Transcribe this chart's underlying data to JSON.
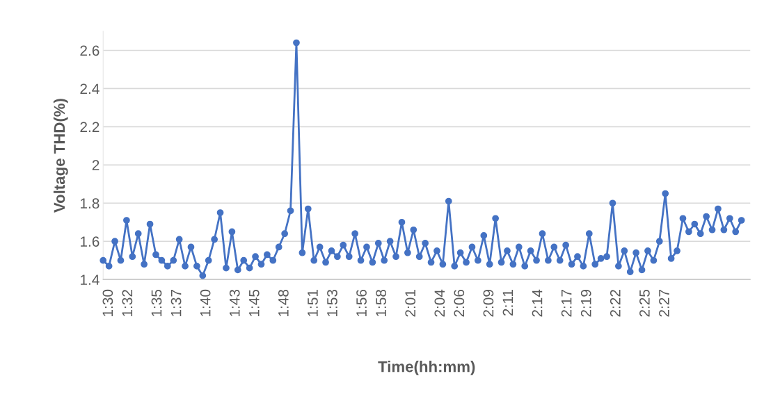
{
  "chart_data": {
    "type": "line",
    "xlabel": "Time(hh:mm)",
    "ylabel": "Voltage THD(%)",
    "x": [
      1.49,
      1.5,
      1.51,
      1.52,
      1.53,
      1.54,
      1.55,
      1.56,
      1.57,
      1.58,
      1.59,
      1.6,
      1.61,
      1.62,
      1.63,
      1.64,
      1.65,
      1.66,
      1.67,
      1.68,
      1.69,
      1.7,
      1.71,
      1.72,
      1.73,
      1.74,
      1.75,
      1.76,
      1.77,
      1.78,
      1.79,
      1.8,
      1.81,
      1.82,
      1.83,
      1.84,
      1.85,
      1.86,
      1.87,
      1.88,
      1.89,
      1.9,
      1.91,
      1.92,
      1.93,
      1.94,
      1.95,
      1.96,
      1.97,
      1.98,
      1.99,
      2.0,
      2.01,
      2.02,
      2.03,
      2.04,
      2.05,
      2.06,
      2.07,
      2.08,
      2.09,
      2.1,
      2.11,
      2.12,
      2.13,
      2.14,
      2.15,
      2.16,
      2.17,
      2.18,
      2.19,
      2.2,
      2.21,
      2.22,
      2.23,
      2.24,
      2.25,
      2.26,
      2.27,
      2.28,
      2.29,
      2.3,
      2.31,
      2.32,
      2.33,
      2.34,
      2.35,
      2.36,
      2.37,
      2.38,
      2.39,
      2.4,
      2.41,
      2.42,
      2.43,
      2.44,
      2.45,
      2.46,
      2.47,
      2.48,
      2.49,
      2.5,
      2.51,
      2.52,
      2.53,
      2.54,
      2.55,
      2.56,
      2.57,
      2.58
    ],
    "series": [
      {
        "color": "#4472c4",
        "values": [
          1.5,
          1.47,
          1.6,
          1.5,
          1.71,
          1.52,
          1.64,
          1.48,
          1.69,
          1.53,
          1.5,
          1.47,
          1.5,
          1.61,
          1.47,
          1.57,
          1.47,
          1.42,
          1.5,
          1.61,
          1.75,
          1.46,
          1.65,
          1.45,
          1.5,
          1.46,
          1.52,
          1.48,
          1.53,
          1.5,
          1.57,
          1.64,
          1.76,
          2.64,
          1.54,
          1.77,
          1.5,
          1.57,
          1.49,
          1.55,
          1.52,
          1.58,
          1.52,
          1.64,
          1.5,
          1.57,
          1.49,
          1.59,
          1.5,
          1.6,
          1.52,
          1.7,
          1.54,
          1.66,
          1.52,
          1.59,
          1.49,
          1.55,
          1.48,
          1.81,
          1.47,
          1.54,
          1.49,
          1.57,
          1.5,
          1.63,
          1.48,
          1.72,
          1.49,
          1.55,
          1.48,
          1.57,
          1.47,
          1.55,
          1.5,
          1.64,
          1.5,
          1.57,
          1.5,
          1.58,
          1.48,
          1.52,
          1.47,
          1.64,
          1.48,
          1.51,
          1.52,
          1.8,
          1.47,
          1.55,
          1.44,
          1.54,
          1.45,
          1.55,
          1.5,
          1.6,
          1.85,
          1.51,
          1.55,
          1.72,
          1.65,
          1.69,
          1.64,
          1.73,
          1.66,
          1.77,
          1.66,
          1.72,
          1.65,
          1.71
        ]
      }
    ],
    "xlim": [
      1.49,
      2.595
    ],
    "xticks": [
      {
        "value": 1.5,
        "label": "1:30"
      },
      {
        "value": 1.5333,
        "label": "1:32"
      },
      {
        "value": 1.5833,
        "label": "1:35"
      },
      {
        "value": 1.6167,
        "label": "1:37"
      },
      {
        "value": 1.6667,
        "label": "1:40"
      },
      {
        "value": 1.7167,
        "label": "1:43"
      },
      {
        "value": 1.75,
        "label": "1:45"
      },
      {
        "value": 1.8,
        "label": "1:48"
      },
      {
        "value": 1.85,
        "label": "1:51"
      },
      {
        "value": 1.8833,
        "label": "1:53"
      },
      {
        "value": 1.9333,
        "label": "1:56"
      },
      {
        "value": 1.9667,
        "label": "1:58"
      },
      {
        "value": 2.0167,
        "label": "2:01"
      },
      {
        "value": 2.0667,
        "label": "2:04"
      },
      {
        "value": 2.1,
        "label": "2:06"
      },
      {
        "value": 2.15,
        "label": "2:09"
      },
      {
        "value": 2.1833,
        "label": "2:11"
      },
      {
        "value": 2.2333,
        "label": "2:14"
      },
      {
        "value": 2.2833,
        "label": "2:17"
      },
      {
        "value": 2.3167,
        "label": "2:19"
      },
      {
        "value": 2.3667,
        "label": "2:22"
      },
      {
        "value": 2.4167,
        "label": "2:25"
      },
      {
        "value": 2.45,
        "label": "2:27"
      }
    ],
    "ylim": [
      1.4,
      2.7
    ],
    "yticks": [
      1.4,
      1.6,
      1.8,
      2,
      2.2,
      2.4,
      2.6
    ],
    "grid": "y",
    "marker": "circle",
    "line_style": "solid"
  }
}
